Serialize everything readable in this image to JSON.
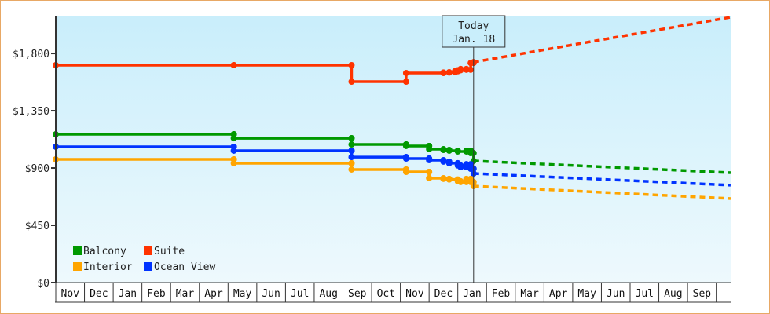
{
  "chart_data": {
    "type": "line",
    "title": "",
    "xlabel": "",
    "ylabel": "",
    "ylim": [
      0,
      2100
    ],
    "y_ticks": [
      {
        "value": 0,
        "label": "$0"
      },
      {
        "value": 450,
        "label": "$450"
      },
      {
        "value": 900,
        "label": "$900"
      },
      {
        "value": 1350,
        "label": "$1,350"
      },
      {
        "value": 1800,
        "label": "$1,800"
      }
    ],
    "x_months": [
      "Nov",
      "Dec",
      "Jan",
      "Feb",
      "Mar",
      "Apr",
      "May",
      "Jun",
      "Jul",
      "Aug",
      "Sep",
      "Oct",
      "Nov",
      "Dec",
      "Jan",
      "Feb",
      "Mar",
      "Apr",
      "May",
      "Jun",
      "Jul",
      "Aug",
      "Sep"
    ],
    "today": {
      "line1": "Today",
      "line2": "Jan. 18",
      "month_index": 14.55
    },
    "legend": [
      {
        "name": "Balcony",
        "color": "#009900"
      },
      {
        "name": "Suite",
        "color": "#ff3300"
      },
      {
        "name": "Interior",
        "color": "#ffa500"
      },
      {
        "name": "Ocean View",
        "color": "#0033ff"
      }
    ],
    "series": [
      {
        "name": "Suite",
        "color": "#ff3300",
        "step": true,
        "points": [
          [
            0,
            1708
          ],
          [
            6.2,
            1708
          ],
          [
            10.3,
            1578
          ],
          [
            12.2,
            1646
          ],
          [
            13.5,
            1650
          ],
          [
            13.7,
            1652
          ],
          [
            13.9,
            1660
          ],
          [
            14.0,
            1668
          ],
          [
            14.1,
            1678
          ],
          [
            14.3,
            1672
          ],
          [
            14.45,
            1725
          ],
          [
            14.55,
            1732
          ]
        ],
        "forecast": [
          [
            14.55,
            1732
          ],
          [
            23.5,
            2084
          ]
        ]
      },
      {
        "name": "Balcony",
        "color": "#009900",
        "step": true,
        "points": [
          [
            0,
            1165
          ],
          [
            6.2,
            1165
          ],
          [
            6.2,
            1134
          ],
          [
            10.3,
            1134
          ],
          [
            10.3,
            1085
          ],
          [
            12.2,
            1085
          ],
          [
            12.2,
            1073
          ],
          [
            13.0,
            1073
          ],
          [
            13.0,
            1048
          ],
          [
            13.5,
            1042
          ],
          [
            13.7,
            1036
          ],
          [
            14.0,
            1030
          ],
          [
            14.3,
            1036
          ],
          [
            14.45,
            1017
          ],
          [
            14.55,
            956
          ]
        ],
        "forecast": [
          [
            14.55,
            956
          ],
          [
            23.5,
            863
          ]
        ]
      },
      {
        "name": "Ocean View",
        "color": "#0033ff",
        "step": true,
        "points": [
          [
            0,
            1067
          ],
          [
            6.2,
            1067
          ],
          [
            6.2,
            1036
          ],
          [
            10.3,
            1036
          ],
          [
            10.3,
            986
          ],
          [
            12.2,
            986
          ],
          [
            12.2,
            974
          ],
          [
            13.0,
            974
          ],
          [
            13.0,
            962
          ],
          [
            13.5,
            950
          ],
          [
            13.7,
            938
          ],
          [
            14.0,
            920
          ],
          [
            14.1,
            906
          ],
          [
            14.3,
            930
          ],
          [
            14.45,
            894
          ],
          [
            14.55,
            857
          ]
        ],
        "forecast": [
          [
            14.55,
            857
          ],
          [
            23.5,
            765
          ]
        ]
      },
      {
        "name": "Interior",
        "color": "#ffa500",
        "step": true,
        "points": [
          [
            0,
            968
          ],
          [
            6.2,
            968
          ],
          [
            6.2,
            937
          ],
          [
            10.3,
            937
          ],
          [
            10.3,
            888
          ],
          [
            12.2,
            888
          ],
          [
            12.2,
            869
          ],
          [
            13.0,
            869
          ],
          [
            13.0,
            820
          ],
          [
            13.5,
            815
          ],
          [
            13.7,
            810
          ],
          [
            14.0,
            796
          ],
          [
            14.1,
            790
          ],
          [
            14.3,
            815
          ],
          [
            14.45,
            790
          ],
          [
            14.55,
            758
          ]
        ],
        "forecast": [
          [
            14.55,
            758
          ],
          [
            23.5,
            660
          ]
        ]
      }
    ]
  },
  "colors": {
    "frame_border": "#e8a865",
    "plot_bg_top": "#c9eefb",
    "plot_bg_bottom": "#eef9fd",
    "axis": "#333333"
  }
}
